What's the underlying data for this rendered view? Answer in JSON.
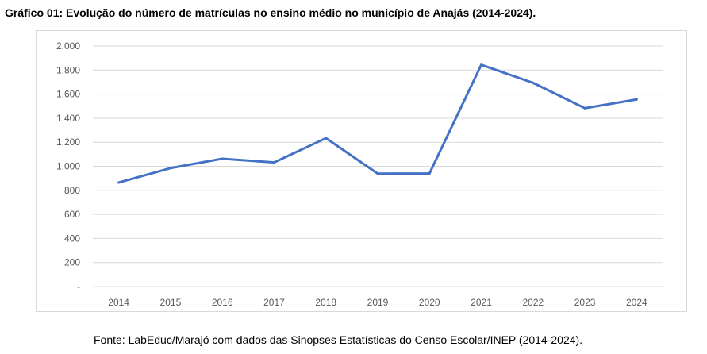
{
  "chart_data": {
    "type": "line",
    "title": "Gráfico 01: Evolução do número de matrículas no ensino médio no município de Anajás (2014-2024).",
    "source": "Fonte: LabEduc/Marajó com dados das Sinopses Estatísticas do Censo Escolar/INEP (2014-2024).",
    "categories": [
      "2014",
      "2015",
      "2016",
      "2017",
      "2018",
      "2019",
      "2020",
      "2021",
      "2022",
      "2023",
      "2024"
    ],
    "series": [
      {
        "values": [
          865,
          985,
          1063,
          1032,
          1234,
          939,
          941,
          1844,
          1694,
          1483,
          1556
        ],
        "color": "#4472c4"
      }
    ],
    "ylim": [
      0,
      2000
    ],
    "yticks": [
      0,
      200,
      400,
      600,
      800,
      1000,
      1200,
      1400,
      1600,
      1800,
      2000
    ],
    "ytick_labels": [
      "-",
      "200",
      "400",
      "600",
      "800",
      "1.000",
      "1.200",
      "1.400",
      "1.600",
      "1.800",
      "2.000"
    ],
    "grid": true,
    "gridColor": "#d9d9d9",
    "legend": "none"
  }
}
